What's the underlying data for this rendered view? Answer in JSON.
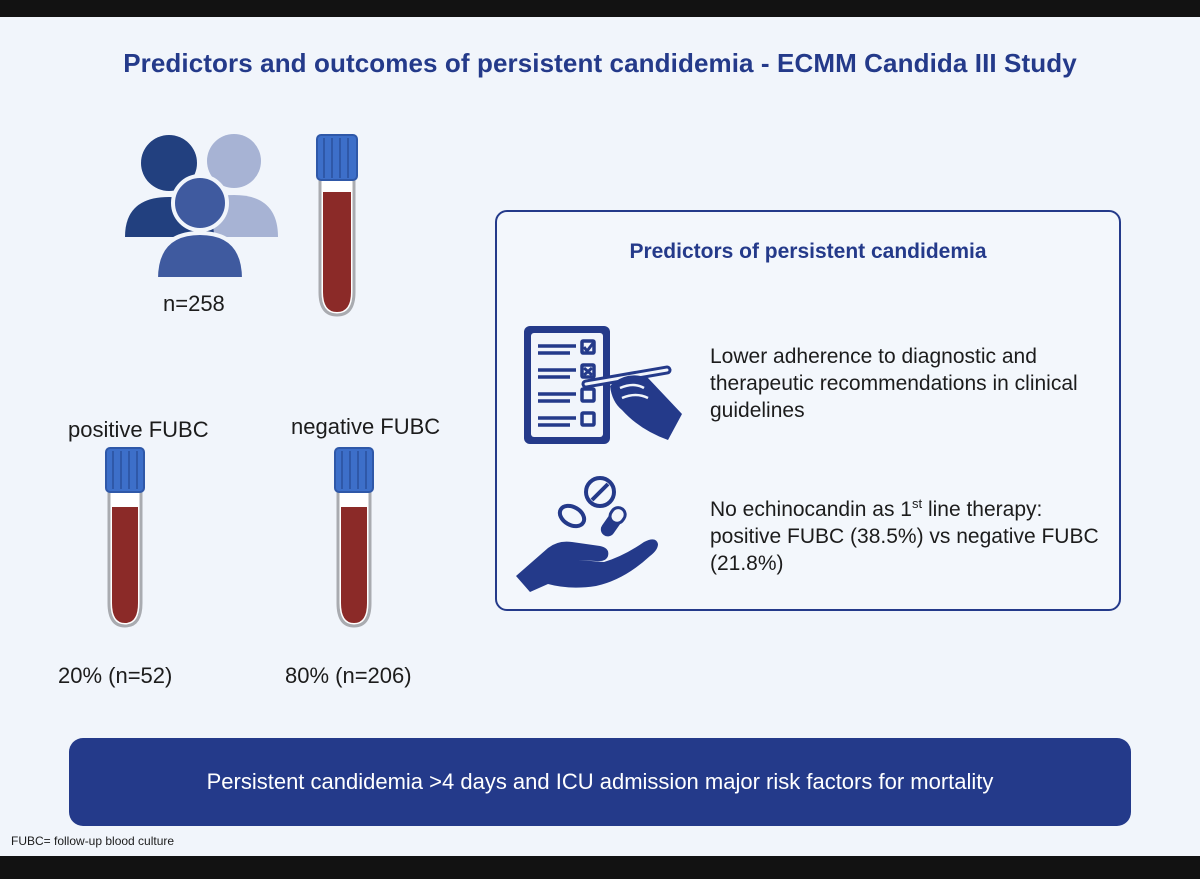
{
  "title": "Predictors and outcomes of persistent candidemia - ECMM Candida III Study",
  "cohort": {
    "icon": "people-group-icon",
    "tube_icon": "blood-tube-icon",
    "total": "n=258"
  },
  "groups": {
    "positive": {
      "label": "positive FUBC",
      "value": "20% (n=52)"
    },
    "negative": {
      "label": "negative FUBC",
      "value": "80% (n=206)"
    }
  },
  "predictors": {
    "title": "Predictors of persistent candidemia",
    "item1": {
      "icon": "checklist-pen-icon",
      "text": "Lower adherence to diagnostic and therapeutic recommendations in clinical guidelines"
    },
    "item2": {
      "icon": "hand-pills-icon",
      "text_before": "No echinocandin as 1",
      "sup": "st",
      "text_after": " line therapy: positive FUBC (38.5%) vs negative FUBC (21.8%)"
    }
  },
  "banner": "Persistent candidemia >4 days and ICU admission major risk factors for mortality",
  "footnote": "FUBC= follow-up blood culture",
  "colors": {
    "navy": "#243a8a",
    "cap_blue": "#3d6fc9",
    "blood": "#8b2a28",
    "person_dark": "#22407f",
    "person_mid": "#3f5a9f",
    "person_light": "#a7b3d4"
  }
}
